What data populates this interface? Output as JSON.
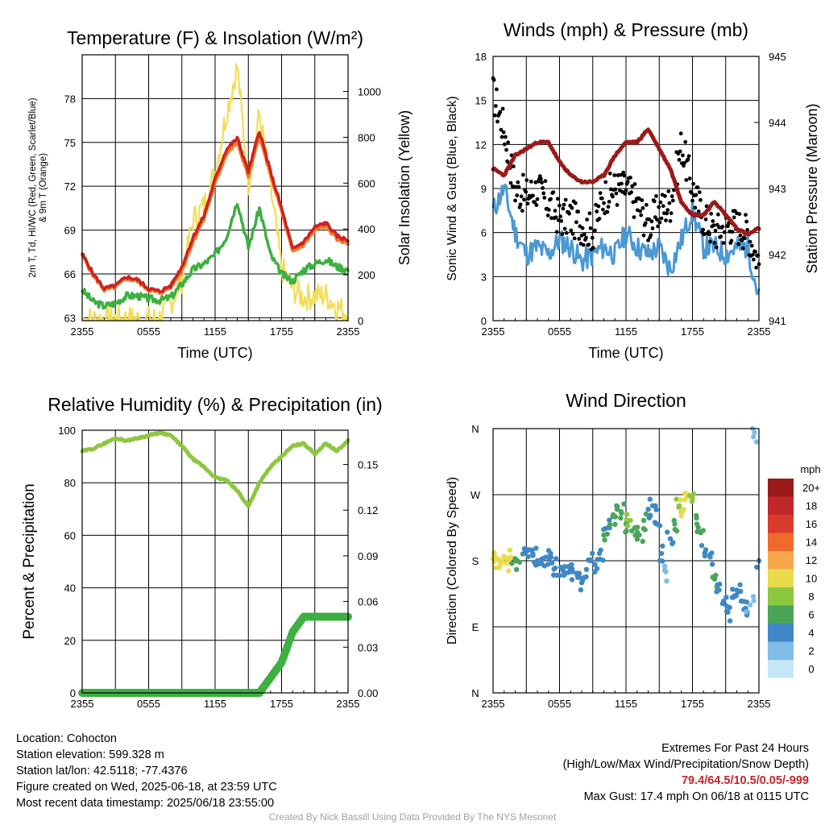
{
  "chart_data": [
    {
      "type": "line",
      "title": "Temperature (F) & Insolation (W/m²)",
      "xlabel": "Time (UTC)",
      "ylabel": "2m T, Td, HI/WC (Red, Green, Scarlet/Blue) & 9m T (Orange)",
      "ylabel_right": "Solar Insolation (Yellow)",
      "x_ticks": [
        "2355",
        "0555",
        "1155",
        "1755",
        "2355"
      ],
      "ylim": [
        62.8,
        81.0
      ],
      "y_ticks": [
        63,
        66,
        69,
        72,
        75,
        78
      ],
      "ylim_right": [
        0,
        1160
      ],
      "y_ticks_right": [
        0,
        200,
        400,
        600,
        800,
        1000
      ],
      "x": [
        0,
        1,
        2,
        3,
        4,
        5,
        6,
        7,
        8,
        9,
        10,
        11,
        12,
        13,
        14,
        15,
        16,
        17,
        18,
        19,
        20,
        21,
        22,
        23,
        24
      ],
      "series": [
        {
          "name": "2m T",
          "color": "#cc2222",
          "values": [
            67.4,
            66.0,
            65.0,
            65.2,
            65.8,
            65.6,
            65.0,
            64.8,
            65.2,
            66.5,
            68.5,
            70.0,
            72.5,
            74.5,
            75.3,
            73.0,
            75.8,
            73.0,
            70.5,
            67.7,
            68.2,
            69.2,
            69.5,
            68.6,
            68.3
          ]
        },
        {
          "name": "9m T",
          "color": "#f07a2a",
          "values": [
            67.3,
            65.9,
            64.9,
            65.1,
            65.7,
            65.5,
            64.9,
            64.7,
            65.1,
            66.3,
            68.2,
            69.8,
            72.2,
            74.2,
            75.0,
            72.7,
            75.4,
            72.8,
            70.3,
            67.5,
            68.0,
            69.0,
            69.3,
            68.4,
            68.1
          ]
        },
        {
          "name": "2m Td",
          "color": "#3cb040",
          "values": [
            64.9,
            64.1,
            63.8,
            64.0,
            64.5,
            64.5,
            64.3,
            64.2,
            64.4,
            65.3,
            66.3,
            66.7,
            67.3,
            68.5,
            71.0,
            67.8,
            70.5,
            67.3,
            66.0,
            65.5,
            66.3,
            66.7,
            67.0,
            66.5,
            66.3
          ]
        },
        {
          "name": "Solar Insolation",
          "color": "#f2dd55",
          "axis": "right",
          "values": [
            5,
            5,
            5,
            5,
            5,
            5,
            5,
            10,
            80,
            180,
            440,
            500,
            650,
            900,
            1110,
            600,
            900,
            580,
            230,
            140,
            100,
            110,
            110,
            60,
            30
          ]
        }
      ]
    },
    {
      "type": "line",
      "title": "Winds (mph) & Pressure (mb)",
      "xlabel": "Time (UTC)",
      "ylabel": "Sonic Wind & Gust (Blue, Black)",
      "ylabel_right": "Station Pressure (Maroon)",
      "x_ticks": [
        "2355",
        "0555",
        "1155",
        "1755",
        "2355"
      ],
      "ylim": [
        0,
        18
      ],
      "y_ticks": [
        0,
        3,
        6,
        9,
        12,
        15,
        18
      ],
      "ylim_right": [
        941,
        945
      ],
      "y_ticks_right": [
        941,
        942,
        943,
        944,
        945
      ],
      "x": [
        0,
        1,
        2,
        3,
        4,
        5,
        6,
        7,
        8,
        9,
        10,
        11,
        12,
        13,
        14,
        15,
        16,
        17,
        18,
        19,
        20,
        21,
        22,
        23,
        24
      ],
      "series": [
        {
          "name": "Sonic Wind",
          "color": "#4a98d4",
          "values": [
            7.5,
            9.0,
            6.0,
            4.5,
            5.0,
            4.5,
            5.5,
            5.0,
            4.0,
            4.5,
            5.0,
            4.5,
            6.0,
            5.0,
            4.5,
            5.0,
            3.5,
            5.5,
            7.5,
            5.0,
            5.0,
            4.5,
            5.0,
            5.0,
            1.5
          ]
        },
        {
          "name": "Gust",
          "color": "#000000",
          "values": [
            15.5,
            13.0,
            9.0,
            8.5,
            9.0,
            8.0,
            7.0,
            7.0,
            6.5,
            6.0,
            8.5,
            9.0,
            9.0,
            8.0,
            6.5,
            7.5,
            8.0,
            12.0,
            9.0,
            7.0,
            6.0,
            6.5,
            6.5,
            6.0,
            4.0
          ]
        },
        {
          "name": "Station Pressure",
          "color": "#9b1a1a",
          "axis": "right",
          "values": [
            943.3,
            943.2,
            943.5,
            943.6,
            943.7,
            943.7,
            943.4,
            943.2,
            943.1,
            943.1,
            943.2,
            943.5,
            943.7,
            943.7,
            943.9,
            943.6,
            943.3,
            942.8,
            942.6,
            942.6,
            942.8,
            942.6,
            942.4,
            942.3,
            942.4
          ]
        }
      ]
    },
    {
      "type": "line",
      "title": "Relative Humidity (%) & Precipitation (in)",
      "ylabel": "Percent & Precipitation",
      "x_ticks": [
        "2355",
        "0555",
        "1155",
        "1755",
        "2355"
      ],
      "ylim": [
        0,
        100
      ],
      "y_ticks": [
        0,
        20,
        40,
        60,
        80,
        100
      ],
      "ylim_right": [
        0,
        0.1725
      ],
      "y_ticks_right": [
        "0.00",
        "0.03",
        "0.06",
        "0.09",
        "0.12",
        "0.15"
      ],
      "x": [
        0,
        1,
        2,
        3,
        4,
        5,
        6,
        7,
        8,
        9,
        10,
        11,
        12,
        13,
        14,
        15,
        16,
        17,
        18,
        19,
        20,
        21,
        22,
        23,
        24
      ],
      "series": [
        {
          "name": "Relative Humidity",
          "color": "#8dc63f",
          "values": [
            92,
            93,
            95,
            97,
            96,
            97,
            98,
            99,
            98,
            94,
            89,
            86,
            82,
            81,
            77,
            71,
            80,
            86,
            90,
            94,
            95,
            91,
            95,
            92,
            96
          ]
        },
        {
          "name": "Precipitation",
          "color": "#3cb040",
          "axis": "right",
          "values": [
            0,
            0,
            0,
            0,
            0,
            0,
            0,
            0,
            0,
            0,
            0,
            0,
            0,
            0,
            0,
            0,
            0,
            0.01,
            0.02,
            0.04,
            0.05,
            0.05,
            0.05,
            0.05,
            0.05
          ]
        }
      ]
    },
    {
      "type": "scatter",
      "title": "Wind Direction",
      "ylabel": "Direction (Colored By Speed)",
      "x_ticks": [
        "2355",
        "0555",
        "1155",
        "1755",
        "2355"
      ],
      "y_ticks": [
        "N",
        "E",
        "S",
        "W",
        "N"
      ],
      "legend_title": "mph",
      "legend_labels": [
        "20+",
        "18",
        "16",
        "14",
        "12",
        "10",
        "8",
        "6",
        "4",
        "2",
        "0"
      ],
      "legend_colors": [
        "#9b1a1a",
        "#c0272d",
        "#d93a2b",
        "#f06b2b",
        "#f7a84a",
        "#e8dc4b",
        "#8dc63f",
        "#4aa55a",
        "#3f88c5",
        "#7fbce6",
        "#c4e6f6"
      ],
      "points_x": [
        0.0,
        0.4,
        0.8,
        1.2,
        1.6,
        2.0,
        2.4,
        2.8,
        3.2,
        3.6,
        4.0,
        4.4,
        4.8,
        5.2,
        5.6,
        6.0,
        6.4,
        6.8,
        7.2,
        7.6,
        8.0,
        8.4,
        8.8,
        9.2,
        9.6,
        10.0,
        10.4,
        10.8,
        11.2,
        11.6,
        12.0,
        12.4,
        12.8,
        13.2,
        13.6,
        14.0,
        14.4,
        14.8,
        15.2,
        15.6,
        16.0,
        16.4,
        16.8,
        17.2,
        17.6,
        18.0,
        18.4,
        18.8,
        19.2,
        19.6,
        20.0,
        20.4,
        20.8,
        21.2,
        21.6,
        22.0,
        22.4,
        22.8,
        23.2,
        23.6,
        24.0
      ],
      "points_y": [
        183,
        183,
        180,
        177,
        185,
        182,
        178,
        190,
        195,
        188,
        180,
        176,
        185,
        190,
        170,
        160,
        165,
        172,
        165,
        160,
        150,
        158,
        180,
        175,
        190,
        215,
        225,
        240,
        250,
        245,
        230,
        235,
        225,
        215,
        235,
        250,
        255,
        230,
        190,
        165,
        210,
        230,
        255,
        250,
        270,
        265,
        230,
        220,
        195,
        185,
        155,
        140,
        125,
        110,
        130,
        140,
        125,
        115,
        120,
        355,
        180
      ],
      "points_speed": [
        9,
        9,
        9,
        10,
        9,
        5,
        5,
        4,
        4,
        4,
        4,
        4,
        3,
        4,
        4,
        4,
        3,
        4,
        3,
        4,
        4,
        4,
        4,
        4,
        4,
        5,
        4,
        5,
        6,
        6,
        6,
        7,
        6,
        6,
        5,
        4,
        4,
        3,
        3,
        2,
        4,
        5,
        7,
        10,
        9,
        8,
        6,
        6,
        4,
        4,
        5,
        4,
        4,
        4,
        3,
        4,
        3,
        3,
        2,
        2,
        3
      ]
    }
  ],
  "info_left": [
    "Location: Cohocton",
    "Station elevation: 599.328 m",
    "Station lat/lon: 42.5118; -77.4376",
    "Figure created on Wed, 2025-06-18, at 23:59 UTC",
    "Most recent data timestamp: 2025/06/18 23:55:00"
  ],
  "extremes": {
    "title": "Extremes For Past 24 Hours",
    "subtitle": "(High/Low/Max Wind/Precipitation/Snow Depth)",
    "values": "79.4/64.5/10.5/0.05/-999",
    "max_gust": "Max Gust: 17.4 mph On 06/18 at 0115 UTC"
  },
  "credit": "Created By Nick Bassill Using Data Provided By The NYS Mesonet"
}
